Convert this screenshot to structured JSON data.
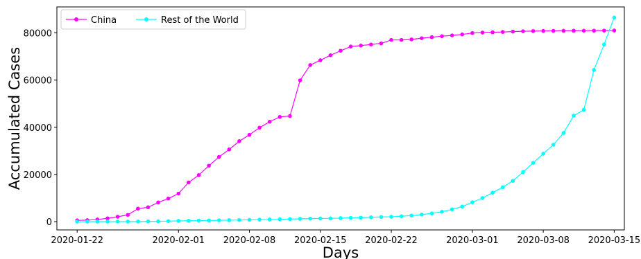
{
  "chart_data": {
    "type": "line",
    "title": "",
    "xlabel": "Days",
    "ylabel": "Accumulated Cases",
    "x_start": "2020-01-22",
    "x_end": "2020-03-15",
    "xlim": [
      "2020-01-20",
      "2020-03-16"
    ],
    "ylim": [
      -3500,
      91000
    ],
    "x_ticks": [
      "2020-01-22",
      "2020-02-01",
      "2020-02-08",
      "2020-02-15",
      "2020-02-22",
      "2020-03-01",
      "2020-03-08",
      "2020-03-15"
    ],
    "y_ticks": [
      0,
      20000,
      40000,
      60000,
      80000
    ],
    "grid": false,
    "legend": {
      "placement": "top-left",
      "columns": 2
    },
    "series": [
      {
        "name": "China",
        "color": "#ff00ff",
        "values": [
          548,
          643,
          920,
          1406,
          2075,
          2877,
          5509,
          6087,
          8141,
          9802,
          11891,
          16630,
          19716,
          23707,
          27440,
          30587,
          34110,
          36814,
          39829,
          42354,
          44386,
          44759,
          59895,
          66358,
          68413,
          70513,
          72434,
          74211,
          74619,
          75077,
          75550,
          77001,
          77022,
          77241,
          77754,
          78166,
          78600,
          78928,
          79356,
          79932,
          80136,
          80261,
          80386,
          80537,
          80690,
          80770,
          80823,
          80860,
          80887,
          80921,
          80932,
          80945,
          80977,
          81003
        ]
      },
      {
        "name": "Rest of the World",
        "color": "#00ffff",
        "values": [
          7,
          11,
          21,
          28,
          43,
          50,
          70,
          125,
          141,
          225,
          323,
          380,
          460,
          510,
          570,
          620,
          700,
          780,
          850,
          920,
          1000,
          1100,
          1200,
          1300,
          1350,
          1400,
          1500,
          1600,
          1700,
          1850,
          2000,
          2100,
          2300,
          2600,
          3000,
          3500,
          4200,
          5200,
          6400,
          8200,
          10000,
          12300,
          14600,
          17300,
          21000,
          24900,
          28800,
          32600,
          37600,
          44900,
          47400,
          64300,
          75100,
          86500
        ]
      }
    ]
  }
}
